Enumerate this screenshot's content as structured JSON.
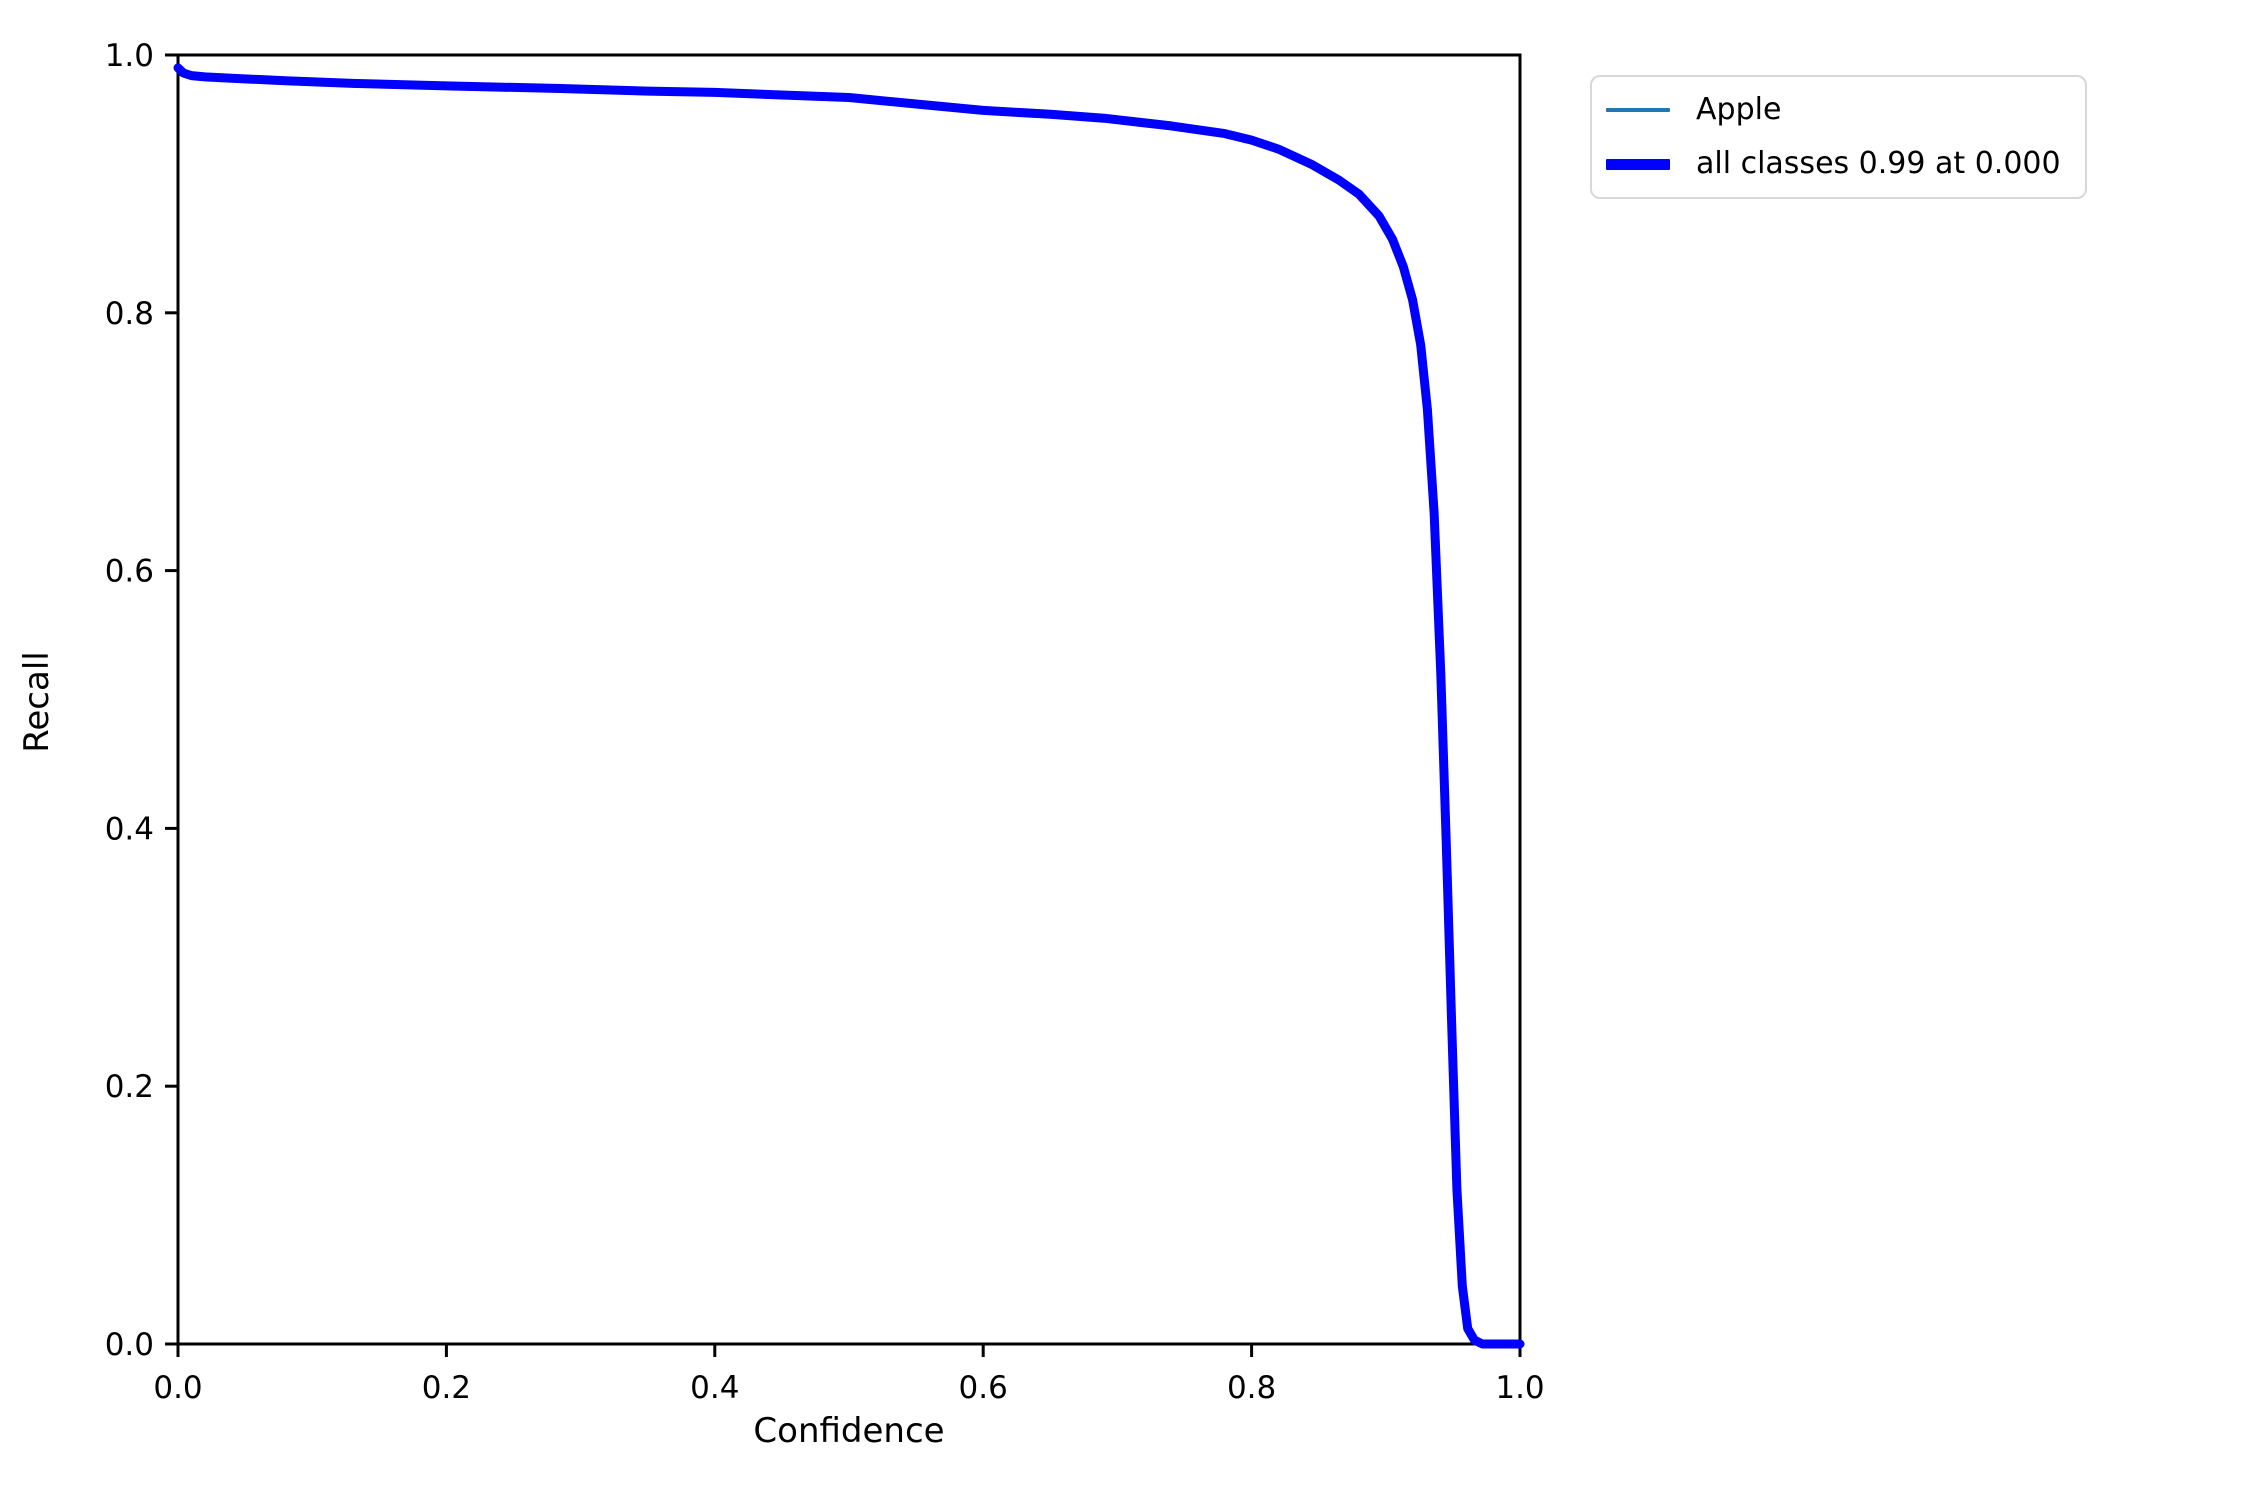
{
  "chart_data": {
    "type": "line",
    "title": "",
    "xlabel": "Confidence",
    "ylabel": "Recall",
    "xlim": [
      0.0,
      1.0
    ],
    "ylim": [
      0.0,
      1.0
    ],
    "grid": false,
    "legend_position": "outside-upper-right",
    "xticks": {
      "values": [
        0.0,
        0.2,
        0.4,
        0.6,
        0.8,
        1.0
      ],
      "labels": [
        "0.0",
        "0.2",
        "0.4",
        "0.6",
        "0.8",
        "1.0"
      ]
    },
    "yticks": {
      "values": [
        0.0,
        0.2,
        0.4,
        0.6,
        0.8,
        1.0
      ],
      "labels": [
        "0.0",
        "0.2",
        "0.4",
        "0.6",
        "0.8",
        "1.0"
      ]
    },
    "series": [
      {
        "name": "Apple",
        "color": "#1f77b4",
        "linewidth": 2.5,
        "x": [
          0.0,
          0.004,
          0.01,
          0.02,
          0.04,
          0.08,
          0.13,
          0.2,
          0.285,
          0.35,
          0.4,
          0.45,
          0.5,
          0.55,
          0.6,
          0.65,
          0.69,
          0.74,
          0.78,
          0.8,
          0.82,
          0.845,
          0.865,
          0.88,
          0.895,
          0.905,
          0.913,
          0.92,
          0.926,
          0.931,
          0.936,
          0.941,
          0.945,
          0.949,
          0.953,
          0.957,
          0.961,
          0.966,
          0.972,
          1.0
        ],
        "y": [
          0.99,
          0.986,
          0.984,
          0.983,
          0.982,
          0.98,
          0.978,
          0.976,
          0.974,
          0.972,
          0.971,
          0.969,
          0.967,
          0.962,
          0.957,
          0.954,
          0.951,
          0.945,
          0.939,
          0.934,
          0.927,
          0.915,
          0.903,
          0.892,
          0.875,
          0.857,
          0.836,
          0.81,
          0.775,
          0.725,
          0.645,
          0.52,
          0.39,
          0.25,
          0.12,
          0.045,
          0.012,
          0.003,
          0.0,
          0.0
        ]
      },
      {
        "name": "all classes 0.99 at 0.000",
        "color": "#0000ff",
        "linewidth": 9,
        "x": [
          0.0,
          0.004,
          0.01,
          0.02,
          0.04,
          0.08,
          0.13,
          0.2,
          0.285,
          0.35,
          0.4,
          0.45,
          0.5,
          0.55,
          0.6,
          0.65,
          0.69,
          0.74,
          0.78,
          0.8,
          0.82,
          0.845,
          0.865,
          0.88,
          0.895,
          0.905,
          0.913,
          0.92,
          0.926,
          0.931,
          0.936,
          0.941,
          0.945,
          0.949,
          0.953,
          0.957,
          0.961,
          0.966,
          0.972,
          1.0
        ],
        "y": [
          0.99,
          0.986,
          0.984,
          0.983,
          0.982,
          0.98,
          0.978,
          0.976,
          0.974,
          0.972,
          0.971,
          0.969,
          0.967,
          0.962,
          0.957,
          0.954,
          0.951,
          0.945,
          0.939,
          0.934,
          0.927,
          0.915,
          0.903,
          0.892,
          0.875,
          0.857,
          0.836,
          0.81,
          0.775,
          0.725,
          0.645,
          0.52,
          0.39,
          0.25,
          0.12,
          0.045,
          0.012,
          0.003,
          0.0,
          0.0
        ]
      }
    ]
  },
  "colors": {
    "spine": "#000000",
    "tick_label": "#000000",
    "legend_border": "#d8d8d8",
    "background": "#ffffff"
  }
}
